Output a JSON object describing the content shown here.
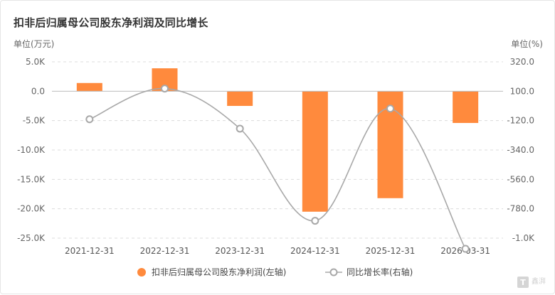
{
  "title": "扣非后归属母公司股东净利润及同比增长",
  "left_unit": "单位(万元)",
  "right_unit": "单位(%)",
  "watermark": "TT",
  "watermark_text": "鑫湃",
  "colors": {
    "bar": "#ff8a3d",
    "line": "#a8a8a8",
    "zero_line": "#bdbdbd",
    "grid": "#dcdcdc"
  },
  "chart_data": {
    "type": "bar",
    "categories": [
      "2021-12-31",
      "2022-12-31",
      "2023-12-31",
      "2024-12-31",
      "2025-12-31",
      "2026-03-31"
    ],
    "series": [
      {
        "name": "扣非后归属母公司股东净利润(左轴)",
        "type": "bar",
        "axis": "left",
        "values": [
          1400,
          3900,
          -2500,
          -20500,
          -18200,
          -5400
        ]
      },
      {
        "name": "同比增长率(右轴)",
        "type": "line",
        "axis": "right",
        "values": [
          -110,
          120,
          -180,
          -870,
          -30,
          -1080
        ]
      }
    ],
    "y_left": {
      "min": -25000,
      "max": 5000,
      "ticks": [
        5000,
        0,
        -5000,
        -10000,
        -15000,
        -20000,
        -25000
      ],
      "tick_labels": [
        "5.0K",
        "0.0",
        "-5.0K",
        "-10.0K",
        "-15.0K",
        "-20.0K",
        "-25.0K"
      ]
    },
    "y_right": {
      "min": -1000,
      "max": 320,
      "ticks": [
        320,
        100,
        -120,
        -340,
        -560,
        -780,
        -1000
      ],
      "tick_labels": [
        "320.0",
        "100.0",
        "-120.0",
        "-340.0",
        "-560.0",
        "-780.0",
        "-1.0K"
      ]
    },
    "grid": true,
    "legend_position": "bottom"
  }
}
